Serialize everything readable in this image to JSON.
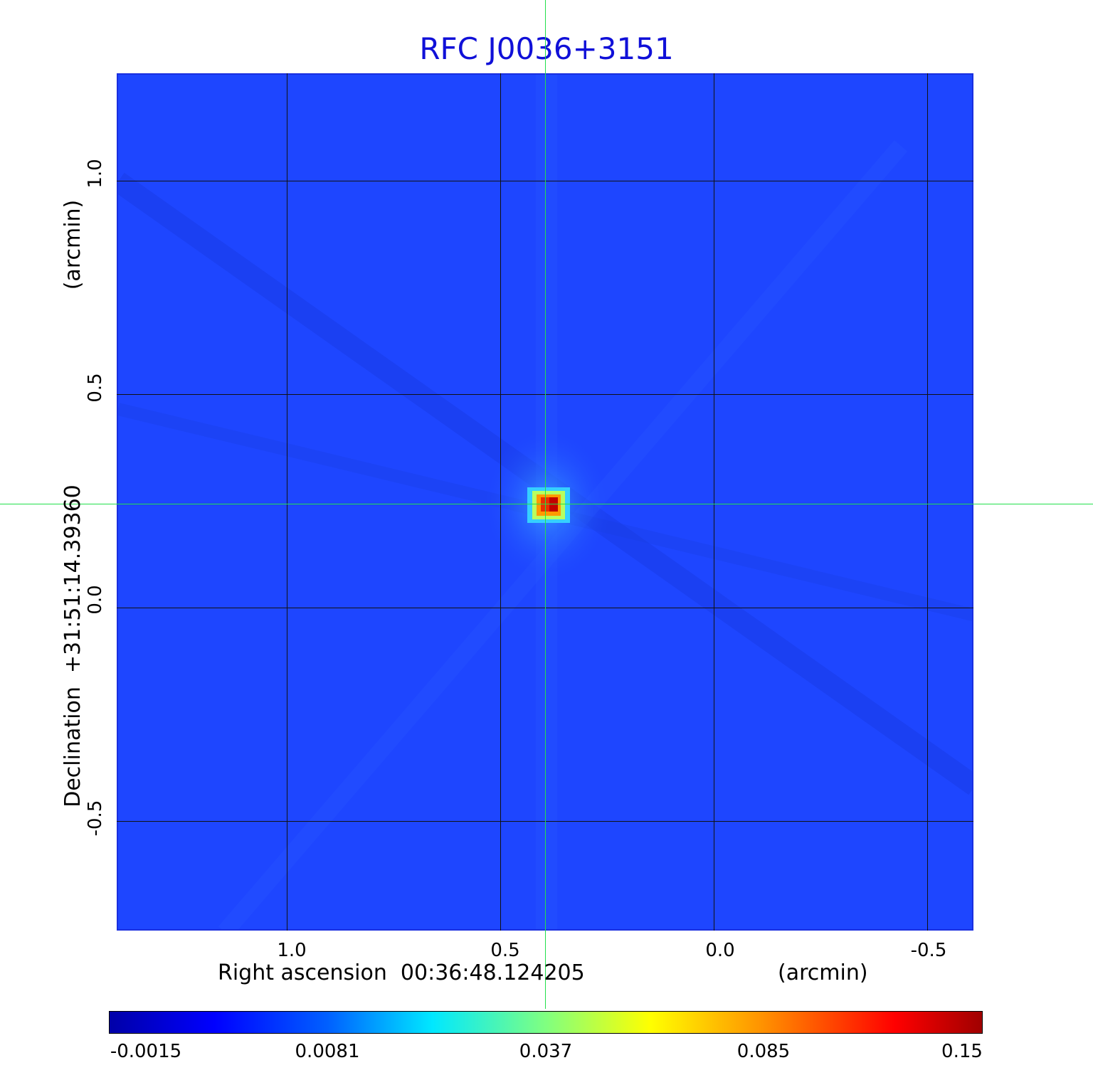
{
  "title": "RFC J0036+3151",
  "x_axis": {
    "label": "Right ascension  00:36:48.124205",
    "unit": "(arcmin)",
    "ticks": [
      "1.0",
      "0.5",
      "0.0",
      "-0.5"
    ]
  },
  "y_axis": {
    "label": "Declination  +31:51:14.39360",
    "unit": "(arcmin)",
    "ticks": [
      "1.0",
      "0.5",
      "0.0",
      "-0.5"
    ]
  },
  "colorbar": {
    "ticks": [
      "-0.0015",
      "0.0081",
      "0.037",
      "0.085",
      "0.15"
    ],
    "colormap": "jet"
  },
  "colors": {
    "background_map": "#1e46ff",
    "title": "#1010d8",
    "crosshair": "#22e04a",
    "source_peak": "#c00000"
  }
}
